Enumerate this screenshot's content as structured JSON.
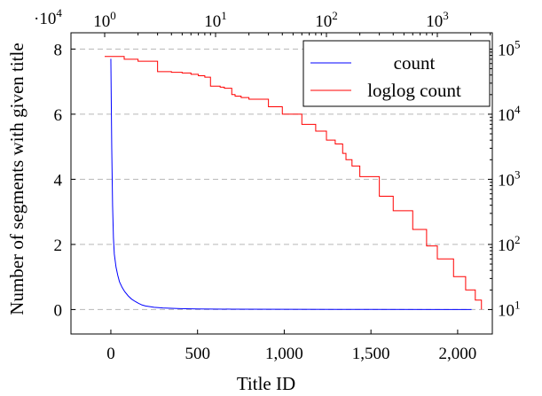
{
  "chart_data": {
    "type": "line",
    "title": "",
    "xlabel": "Title ID",
    "ylabel": "Number of segments with given title",
    "y_multiplier": {
      "base": "·10",
      "exp": "4"
    },
    "grid": "horizontal dashed",
    "legend_position": "top-right",
    "xlim": [
      -230,
      2200
    ],
    "ylim": [
      -0.75,
      8.5
    ],
    "x_ticks": [
      {
        "value": 0,
        "label": "0"
      },
      {
        "value": 500,
        "label": "500"
      },
      {
        "value": 1000,
        "label": "1,000"
      },
      {
        "value": 1500,
        "label": "1,500"
      },
      {
        "value": 2000,
        "label": "2,000"
      }
    ],
    "y_ticks": [
      {
        "value": 0,
        "label": "0"
      },
      {
        "value": 2,
        "label": "2"
      },
      {
        "value": 4,
        "label": "4"
      },
      {
        "value": 6,
        "label": "6"
      },
      {
        "value": 8,
        "label": "8"
      }
    ],
    "top_axis": {
      "scale": "log",
      "ticks": [
        {
          "value": 1,
          "base": "10",
          "exp": "0"
        },
        {
          "value": 10,
          "base": "10",
          "exp": "1"
        },
        {
          "value": 100,
          "base": "10",
          "exp": "2"
        },
        {
          "value": 1000,
          "base": "10",
          "exp": "3"
        }
      ]
    },
    "right_axis": {
      "scale": "log",
      "ticks": [
        {
          "value": 10,
          "base": "10",
          "exp": "1"
        },
        {
          "value": 100,
          "base": "10",
          "exp": "2"
        },
        {
          "value": 1000,
          "base": "10",
          "exp": "3"
        },
        {
          "value": 10000,
          "base": "10",
          "exp": "4"
        },
        {
          "value": 100000,
          "base": "10",
          "exp": "5"
        }
      ]
    },
    "series": [
      {
        "name": "count",
        "color": "#0000ff",
        "x_axis": "bottom",
        "y_axis": "left",
        "points": [
          [
            0,
            7.7
          ],
          [
            5,
            5.0
          ],
          [
            10,
            3.2
          ],
          [
            15,
            2.2
          ],
          [
            20,
            1.7
          ],
          [
            30,
            1.3
          ],
          [
            40,
            1.05
          ],
          [
            50,
            0.85
          ],
          [
            65,
            0.68
          ],
          [
            80,
            0.55
          ],
          [
            100,
            0.42
          ],
          [
            120,
            0.32
          ],
          [
            140,
            0.25
          ],
          [
            160,
            0.19
          ],
          [
            180,
            0.14
          ],
          [
            200,
            0.11
          ],
          [
            250,
            0.07
          ],
          [
            300,
            0.05
          ],
          [
            400,
            0.03
          ],
          [
            500,
            0.02
          ],
          [
            700,
            0.012
          ],
          [
            1000,
            0.007
          ],
          [
            1500,
            0.004
          ],
          [
            2000,
            0.002
          ],
          [
            2080,
            0.0
          ]
        ]
      },
      {
        "name": "loglog count",
        "color": "#ff0000",
        "x_axis": "top",
        "y_axis": "right",
        "points": [
          [
            1,
            77000
          ],
          [
            1.5,
            70000
          ],
          [
            2,
            65000
          ],
          [
            3,
            45000
          ],
          [
            4,
            44000
          ],
          [
            5,
            43000
          ],
          [
            6,
            41000
          ],
          [
            7,
            39000
          ],
          [
            8,
            37000
          ],
          [
            9,
            27000
          ],
          [
            11,
            26000
          ],
          [
            12,
            25000
          ],
          [
            14,
            20000
          ],
          [
            15,
            19000
          ],
          [
            17,
            18000
          ],
          [
            20,
            17000
          ],
          [
            30,
            13000
          ],
          [
            40,
            10000
          ],
          [
            60,
            7000
          ],
          [
            80,
            5500
          ],
          [
            100,
            4000
          ],
          [
            120,
            3500
          ],
          [
            140,
            2500
          ],
          [
            150,
            2000
          ],
          [
            170,
            1600
          ],
          [
            200,
            1100
          ],
          [
            300,
            550
          ],
          [
            400,
            330
          ],
          [
            600,
            170
          ],
          [
            800,
            95
          ],
          [
            1000,
            60
          ],
          [
            1400,
            32
          ],
          [
            1800,
            20
          ],
          [
            2200,
            14
          ],
          [
            2500,
            10
          ]
        ]
      }
    ]
  }
}
